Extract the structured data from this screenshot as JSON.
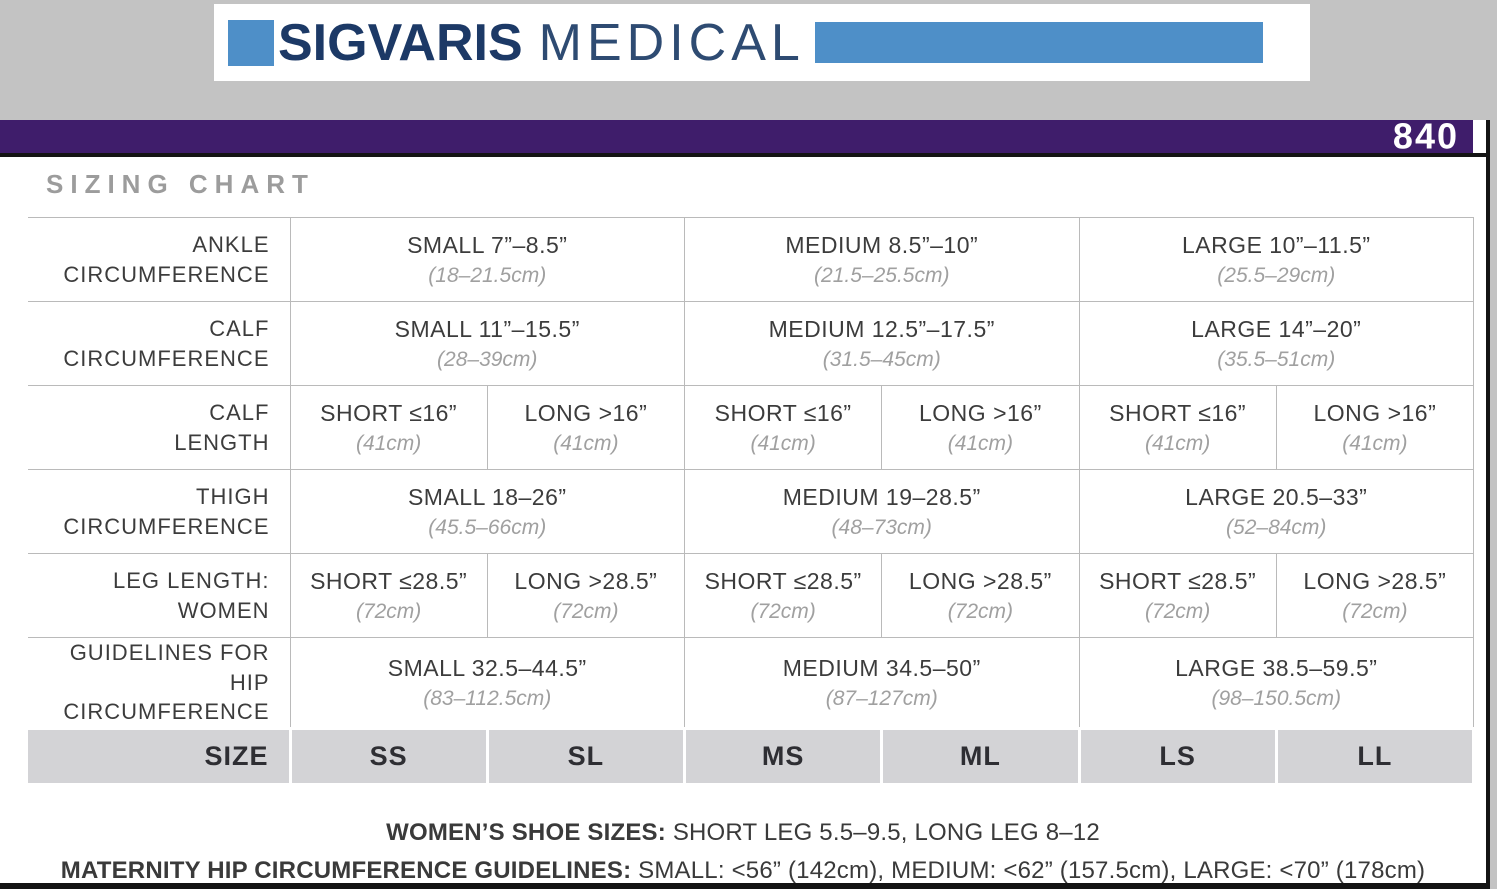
{
  "colors": {
    "page_bg": "#c3c3c3",
    "brand_blue": "#4e8fc8",
    "brand_navy": "#1c3966",
    "accent_purple": "#3f1d6b"
  },
  "logo": {
    "brand": "SIGVARIS",
    "suffix": "MEDICAL"
  },
  "banner": {
    "product_number": "840"
  },
  "title": "SIZING CHART",
  "table": {
    "rows": [
      {
        "label": [
          "ANKLE",
          "CIRCUMFERENCE"
        ],
        "cells": [
          {
            "main": "SMALL 7”–8.5”",
            "sub": "(18–21.5cm)",
            "span": 2
          },
          {
            "main": "MEDIUM 8.5”–10”",
            "sub": "(21.5–25.5cm)",
            "span": 2
          },
          {
            "main": "LARGE 10”–11.5”",
            "sub": "(25.5–29cm)",
            "span": 2
          }
        ]
      },
      {
        "label": [
          "CALF",
          "CIRCUMFERENCE"
        ],
        "cells": [
          {
            "main": "SMALL 11”–15.5”",
            "sub": "(28–39cm)",
            "span": 2
          },
          {
            "main": "MEDIUM 12.5”–17.5”",
            "sub": "(31.5–45cm)",
            "span": 2
          },
          {
            "main": "LARGE 14”–20”",
            "sub": "(35.5–51cm)",
            "span": 2
          }
        ]
      },
      {
        "label": [
          "CALF",
          "LENGTH"
        ],
        "cells": [
          {
            "main": "SHORT ≤16”",
            "sub": "(41cm)",
            "span": 1
          },
          {
            "main": "LONG >16”",
            "sub": "(41cm)",
            "span": 1
          },
          {
            "main": "SHORT ≤16”",
            "sub": "(41cm)",
            "span": 1
          },
          {
            "main": "LONG >16”",
            "sub": "(41cm)",
            "span": 1
          },
          {
            "main": "SHORT ≤16”",
            "sub": "(41cm)",
            "span": 1
          },
          {
            "main": "LONG >16”",
            "sub": "(41cm)",
            "span": 1
          }
        ]
      },
      {
        "label": [
          "THIGH",
          "CIRCUMFERENCE"
        ],
        "cells": [
          {
            "main": "SMALL 18–26”",
            "sub": "(45.5–66cm)",
            "span": 2
          },
          {
            "main": "MEDIUM 19–28.5”",
            "sub": "(48–73cm)",
            "span": 2
          },
          {
            "main": "LARGE 20.5–33”",
            "sub": "(52–84cm)",
            "span": 2
          }
        ]
      },
      {
        "label": [
          "LEG LENGTH:",
          "WOMEN"
        ],
        "cells": [
          {
            "main": "SHORT ≤28.5”",
            "sub": "(72cm)",
            "span": 1
          },
          {
            "main": "LONG >28.5”",
            "sub": "(72cm)",
            "span": 1
          },
          {
            "main": "SHORT ≤28.5”",
            "sub": "(72cm)",
            "span": 1
          },
          {
            "main": "LONG >28.5”",
            "sub": "(72cm)",
            "span": 1
          },
          {
            "main": "SHORT ≤28.5”",
            "sub": "(72cm)",
            "span": 1
          },
          {
            "main": "LONG >28.5”",
            "sub": "(72cm)",
            "span": 1
          }
        ]
      },
      {
        "label": [
          "GUIDELINES FOR HIP",
          "CIRCUMFERENCE"
        ],
        "cells": [
          {
            "main": "SMALL 32.5–44.5”",
            "sub": "(83–112.5cm)",
            "span": 2
          },
          {
            "main": "MEDIUM 34.5–50”",
            "sub": "(87–127cm)",
            "span": 2
          },
          {
            "main": "LARGE 38.5–59.5”",
            "sub": "(98–150.5cm)",
            "span": 2
          }
        ]
      }
    ],
    "size_row": {
      "label": "SIZE",
      "cells": [
        "SS",
        "SL",
        "MS",
        "ML",
        "LS",
        "LL"
      ]
    }
  },
  "footnotes": [
    {
      "bold": "WOMEN’S SHOE SIZES:",
      "text": "SHORT LEG 5.5–9.5, LONG LEG 8–12"
    },
    {
      "bold": "MATERNITY HIP CIRCUMFERENCE GUIDELINES:",
      "text": "SMALL: <56” (142cm), MEDIUM: <62” (157.5cm), LARGE: <70” (178cm)"
    }
  ]
}
